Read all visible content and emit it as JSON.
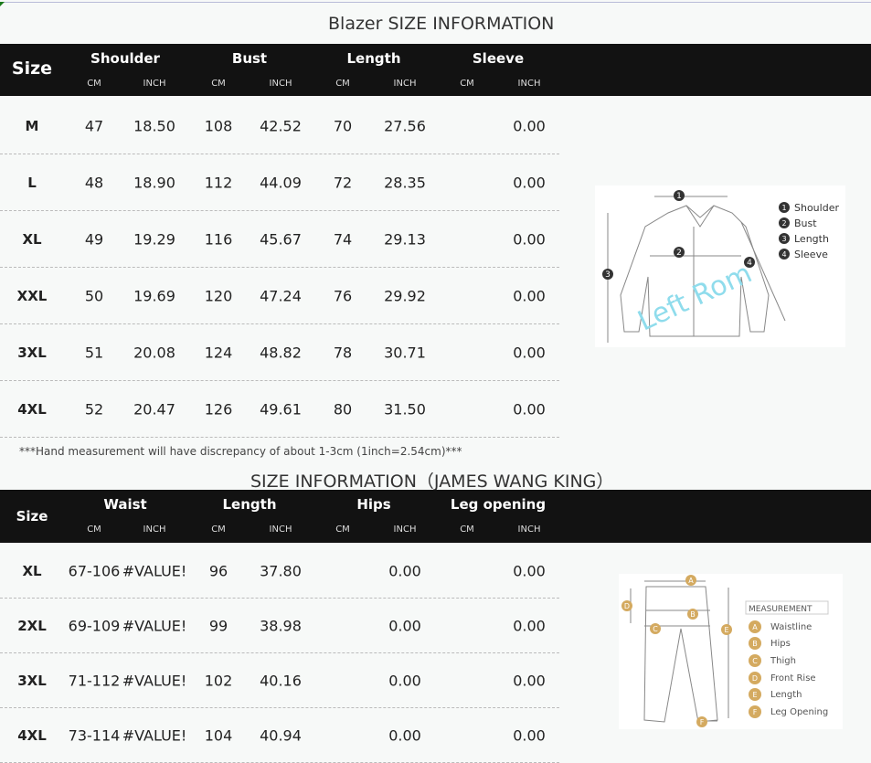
{
  "blazer": {
    "title": "Blazer SIZE INFORMATION",
    "size_label": "Size",
    "groups": [
      "Shoulder",
      "Bust",
      "Length",
      "Sleeve"
    ],
    "unit_cm": "CM",
    "unit_inch": "INCH",
    "rows": [
      [
        "M",
        "47",
        "18.50",
        "108",
        "42.52",
        "70",
        "27.56",
        "",
        "0.00"
      ],
      [
        "L",
        "48",
        "18.90",
        "112",
        "44.09",
        "72",
        "28.35",
        "",
        "0.00"
      ],
      [
        "XL",
        "49",
        "19.29",
        "116",
        "45.67",
        "74",
        "29.13",
        "",
        "0.00"
      ],
      [
        "XXL",
        "50",
        "19.69",
        "120",
        "47.24",
        "76",
        "29.92",
        "",
        "0.00"
      ],
      [
        "3XL",
        "51",
        "20.08",
        "124",
        "48.82",
        "78",
        "30.71",
        "",
        "0.00"
      ],
      [
        "4XL",
        "52",
        "20.47",
        "126",
        "49.61",
        "80",
        "31.50",
        "",
        "0.00"
      ]
    ],
    "note": "***Hand measurement will have discrepancy of about 1-3cm (1inch=2.54cm)***",
    "diagram": {
      "legend": [
        "Shoulder",
        "Bust",
        "Length",
        "Sleeve"
      ],
      "markers": [
        "1",
        "2",
        "3",
        "4"
      ],
      "watermark": "Left Rom"
    }
  },
  "pants": {
    "title": "SIZE INFORMATION（JAMES WANG KING）",
    "size_label": "Size",
    "groups": [
      "Waist",
      "Length",
      "Hips",
      "Leg opening"
    ],
    "unit_cm": "CM",
    "unit_inch": "INCH",
    "rows": [
      [
        "XL",
        "67-106",
        "#VALUE!",
        "96",
        "37.80",
        "",
        "0.00",
        "",
        "0.00"
      ],
      [
        "2XL",
        "69-109",
        "#VALUE!",
        "99",
        "38.98",
        "",
        "0.00",
        "",
        "0.00"
      ],
      [
        "3XL",
        "71-112",
        "#VALUE!",
        "102",
        "40.16",
        "",
        "0.00",
        "",
        "0.00"
      ],
      [
        "4XL",
        "73-114",
        "#VALUE!",
        "104",
        "40.94",
        "",
        "0.00",
        "",
        "0.00"
      ]
    ],
    "diagram": {
      "heading": "MEASUREMENT",
      "markers": [
        "A",
        "B",
        "C",
        "D",
        "E",
        "F"
      ],
      "legend": [
        "Waistline",
        "Hips",
        "Thigh",
        "Front Rise",
        "Length",
        "Leg Opening"
      ]
    }
  },
  "colors": {
    "header_bg": "#121212",
    "marker_gold": "#d4aa60",
    "marker_dark": "#333333"
  }
}
